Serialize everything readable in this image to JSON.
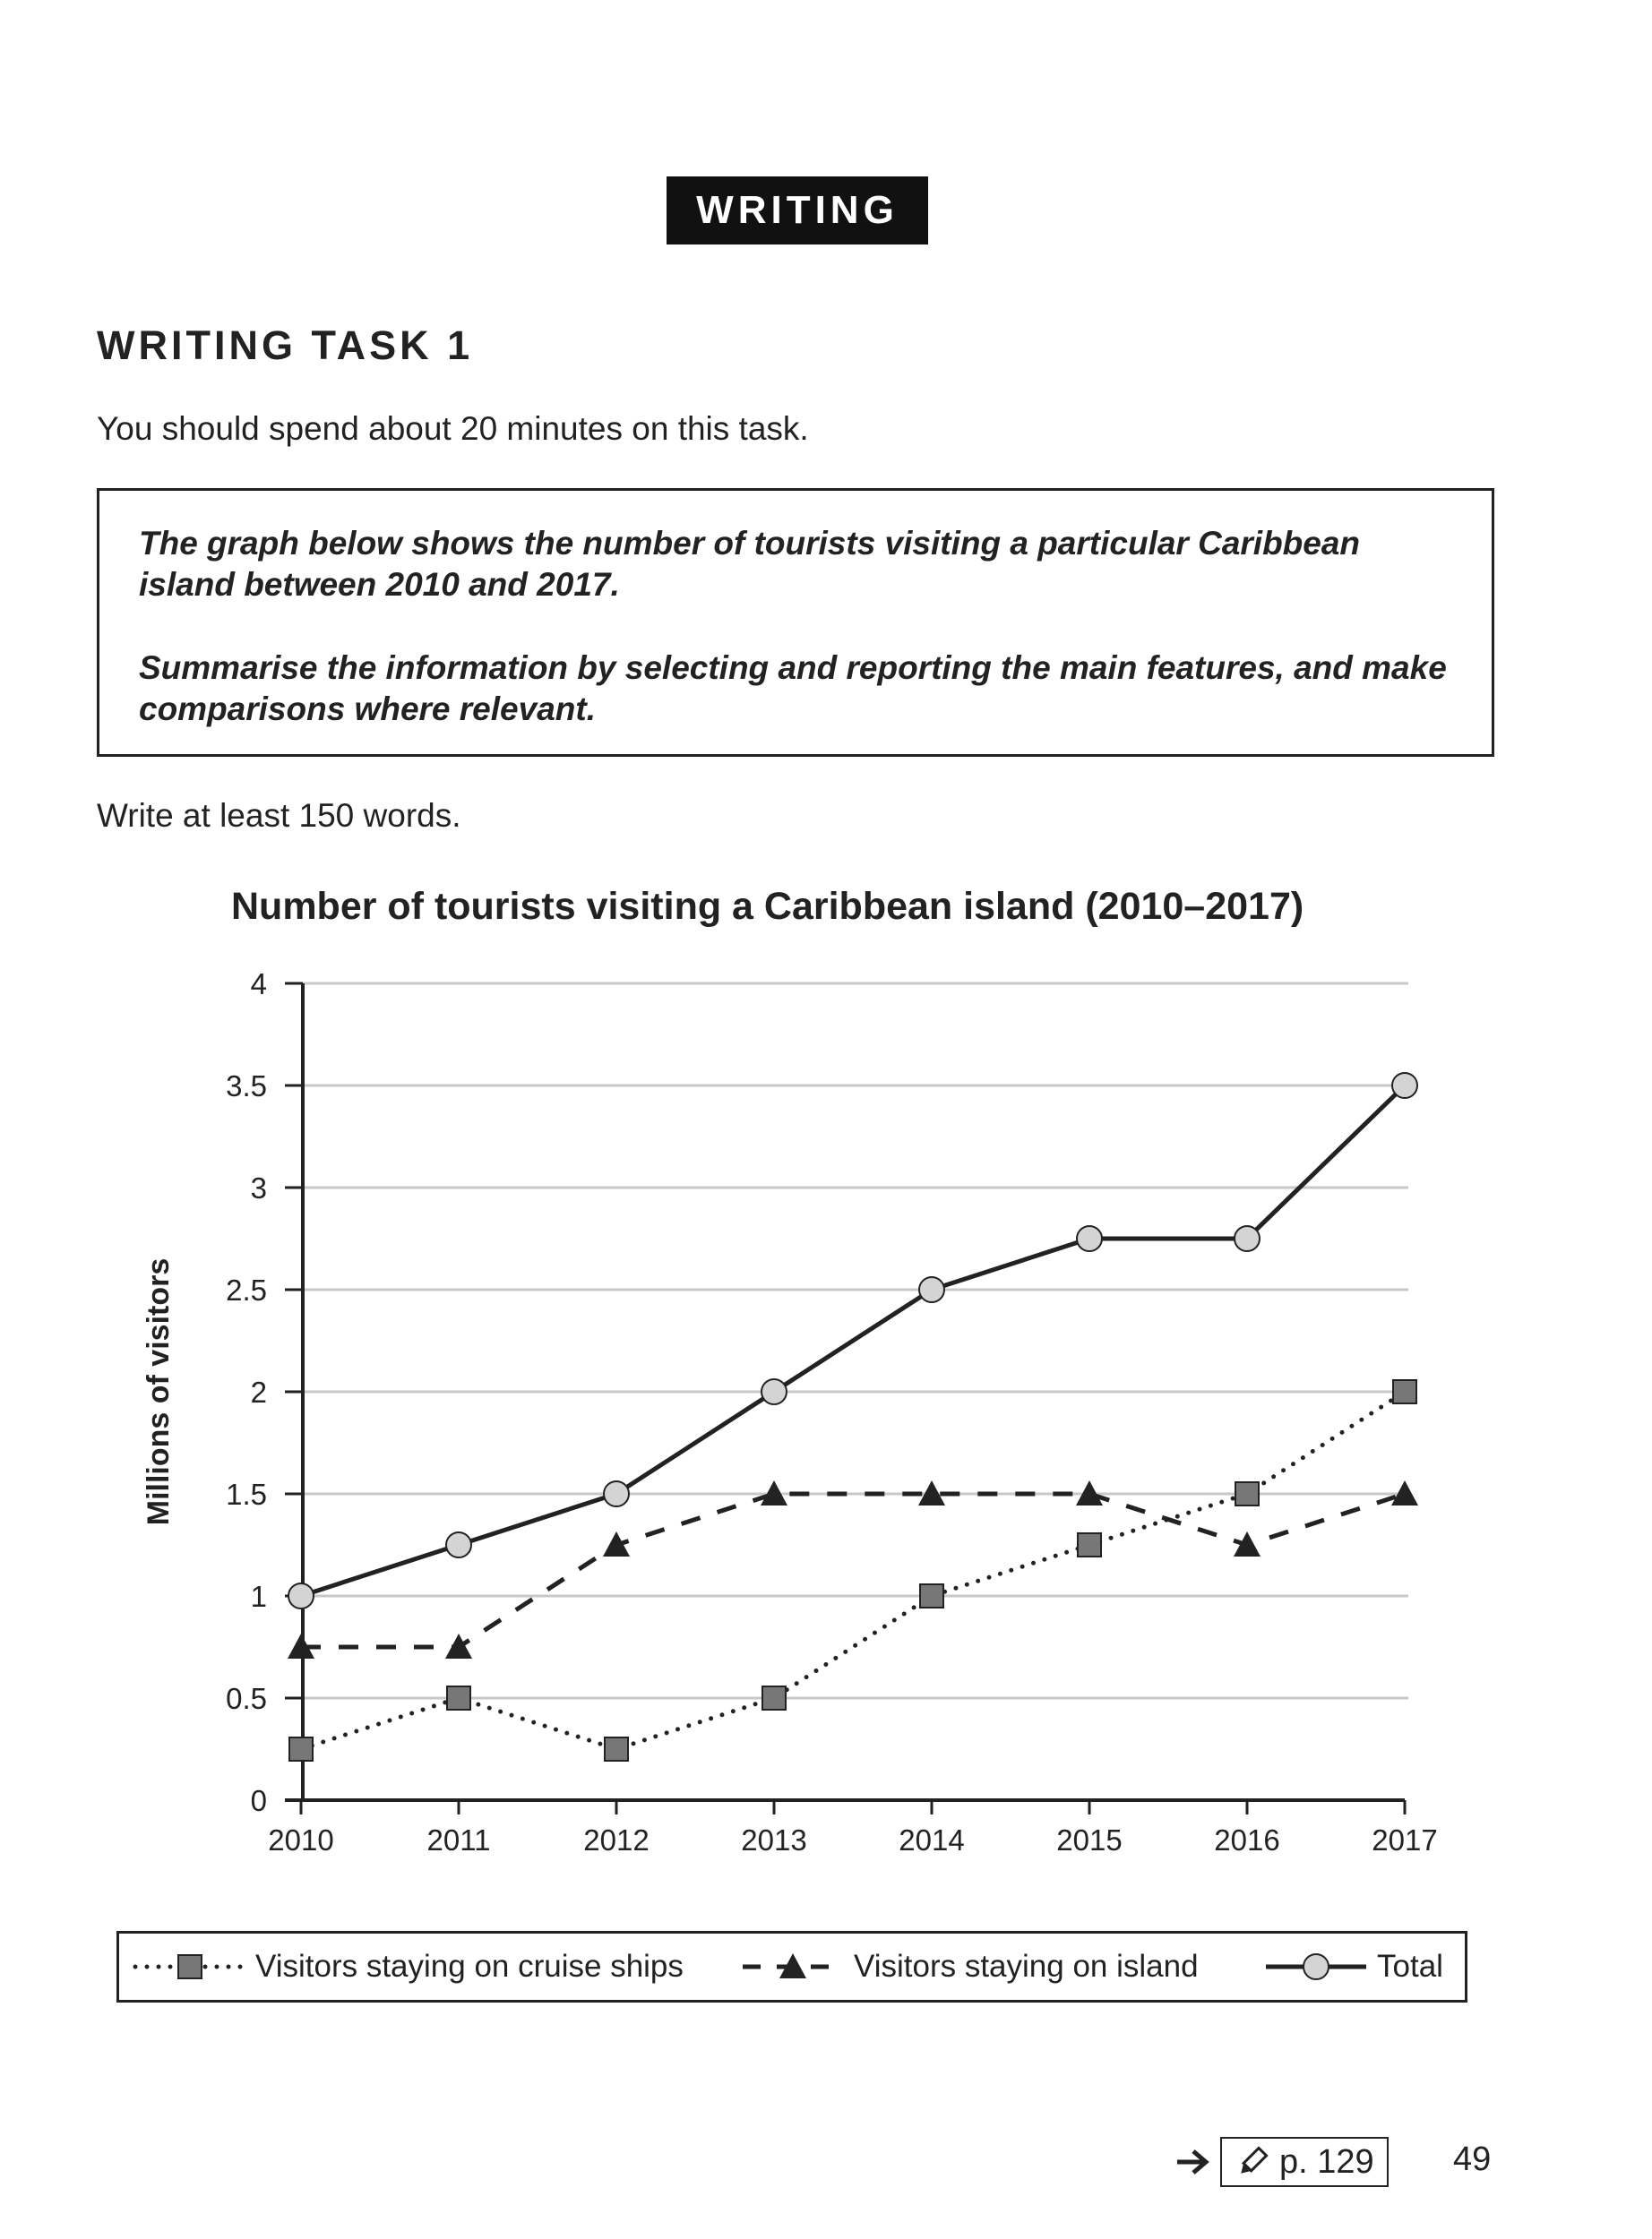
{
  "banner": "WRITING",
  "task_heading": "WRITING TASK 1",
  "time_instruction": "You should spend about 20 minutes on this task.",
  "task_box": {
    "para1": "The graph below shows the number of tourists visiting a particular Caribbean island between 2010 and 2017.",
    "para2": "Summarise the information by selecting and reporting the main features, and make comparisons where relevant."
  },
  "word_instruction": "Write at least 150 words.",
  "chart_data": {
    "type": "line",
    "title": "Number of tourists visiting a Caribbean island (2010–2017)",
    "xlabel": "",
    "ylabel": "Millions of visitors",
    "x": [
      "2010",
      "2011",
      "2012",
      "2013",
      "2014",
      "2015",
      "2016",
      "2017"
    ],
    "ylim": [
      0,
      4
    ],
    "yticks": [
      "0",
      "0.5",
      "1",
      "1.5",
      "2",
      "2.5",
      "3",
      "3.5",
      "4"
    ],
    "grid": true,
    "legend_position": "bottom",
    "series": [
      {
        "name": "Visitors staying on cruise ships",
        "values": [
          0.25,
          0.5,
          0.25,
          0.5,
          1,
          1.25,
          1.5,
          2
        ],
        "line_style": "dotted",
        "marker": "square",
        "marker_color": "#777777"
      },
      {
        "name": "Visitors staying on island",
        "values": [
          0.75,
          0.75,
          1.25,
          1.5,
          1.5,
          1.5,
          1.25,
          1.5
        ],
        "line_style": "dashed",
        "marker": "triangle",
        "marker_color": "#222222"
      },
      {
        "name": "Total",
        "values": [
          1,
          1.25,
          1.5,
          2,
          2.5,
          2.75,
          2.75,
          3.5
        ],
        "line_style": "solid",
        "marker": "circle",
        "marker_color": "#d4d4d4"
      }
    ]
  },
  "footer": {
    "arrow_icon": "right-arrow-icon",
    "pencil_icon": "pencil-icon",
    "page_reference": "p. 129",
    "page_number": "49"
  }
}
